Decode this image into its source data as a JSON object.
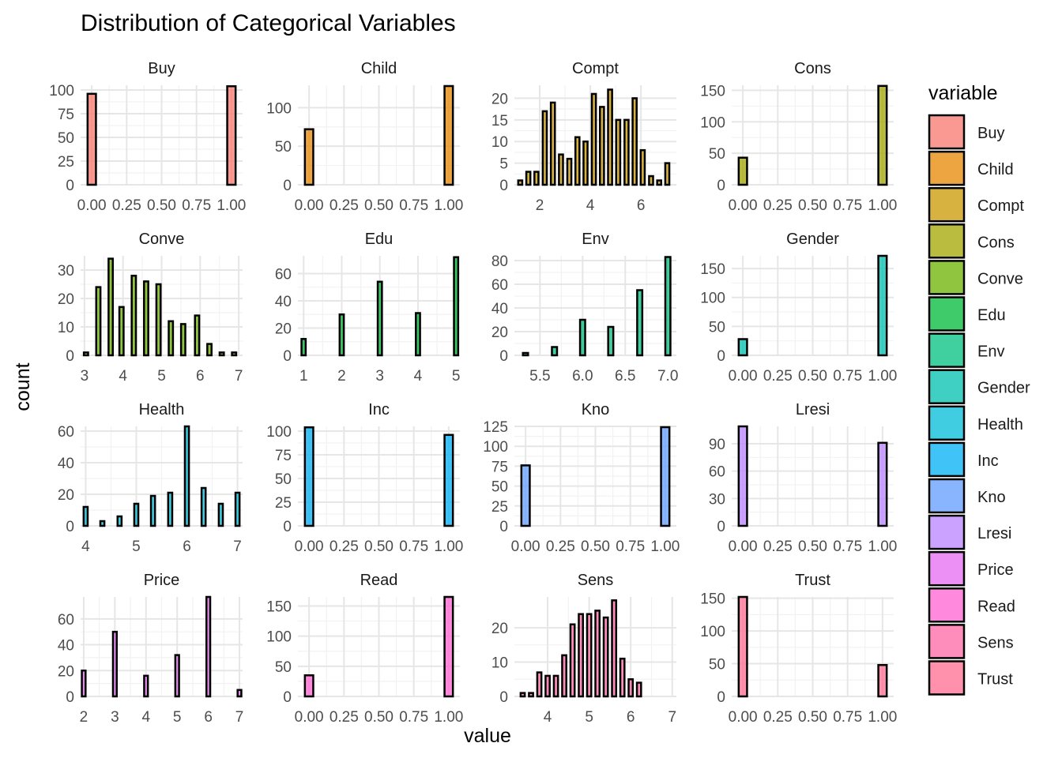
{
  "chart_data": {
    "type": "bar",
    "title": "Distribution of Categorical Variables",
    "xlabel": "value",
    "ylabel": "count",
    "legend_title": "variable",
    "legend_position": "right",
    "grid": true,
    "facets": [
      {
        "name": "Buy",
        "color": "#F8766D",
        "xlim": [
          -0.08,
          1.08
        ],
        "xticks": [
          0,
          0.25,
          0.5,
          0.75,
          1
        ],
        "xtick_labels": [
          "0.00",
          "0.25",
          "0.50",
          "0.75",
          "1.00"
        ],
        "ylim": [
          0,
          105
        ],
        "yticks": [
          0,
          25,
          50,
          75,
          100
        ],
        "bar_width": 0.06,
        "x": [
          0,
          1
        ],
        "values": [
          96,
          104
        ]
      },
      {
        "name": "Child",
        "color": "#E58700",
        "xlim": [
          -0.08,
          1.08
        ],
        "xticks": [
          0,
          0.25,
          0.5,
          0.75,
          1
        ],
        "xtick_labels": [
          "0.00",
          "0.25",
          "0.50",
          "0.75",
          "1.00"
        ],
        "ylim": [
          0,
          129
        ],
        "yticks": [
          0,
          50,
          100
        ],
        "bar_width": 0.06,
        "x": [
          0,
          1
        ],
        "values": [
          72,
          128
        ]
      },
      {
        "name": "Compt",
        "color": "#C99800",
        "xlim": [
          1,
          7.4
        ],
        "xticks": [
          2,
          4,
          6
        ],
        "xtick_labels": [
          "2",
          "4",
          "6"
        ],
        "ylim": [
          0,
          23
        ],
        "yticks": [
          0,
          5,
          10,
          15,
          20
        ],
        "bar_width": 0.16,
        "x": [
          1.23,
          1.55,
          1.87,
          2.2,
          2.52,
          2.84,
          3.17,
          3.49,
          3.81,
          4.14,
          4.46,
          4.78,
          5.1,
          5.43,
          5.75,
          6.07,
          6.4,
          6.72,
          7.04
        ],
        "values": [
          1,
          3,
          3,
          17,
          19,
          7,
          6,
          11,
          10,
          21,
          18,
          22,
          15,
          15,
          20,
          8,
          2,
          1,
          5
        ]
      },
      {
        "name": "Cons",
        "color": "#A3A500",
        "xlim": [
          -0.08,
          1.08
        ],
        "xticks": [
          0,
          0.25,
          0.5,
          0.75,
          1
        ],
        "xtick_labels": [
          "0.00",
          "0.25",
          "0.50",
          "0.75",
          "1.00"
        ],
        "ylim": [
          0,
          158
        ],
        "yticks": [
          0,
          50,
          100,
          150
        ],
        "bar_width": 0.06,
        "x": [
          0,
          1
        ],
        "values": [
          43,
          157
        ]
      },
      {
        "name": "Conve",
        "color": "#6BB100",
        "xlim": [
          2.9,
          7.1
        ],
        "xticks": [
          3,
          4,
          5,
          6,
          7
        ],
        "xtick_labels": [
          "3",
          "4",
          "5",
          "6",
          "7"
        ],
        "ylim": [
          0,
          35
        ],
        "yticks": [
          0,
          10,
          20,
          30
        ],
        "bar_width": 0.11,
        "x": [
          3.04,
          3.36,
          3.68,
          3.96,
          4.28,
          4.6,
          4.92,
          5.24,
          5.56,
          5.92,
          6.24,
          6.56,
          6.88
        ],
        "values": [
          1,
          24,
          34,
          17,
          28,
          26,
          25,
          12,
          11,
          14,
          4,
          1,
          1
        ]
      },
      {
        "name": "Edu",
        "color": "#00BA38",
        "xlim": [
          0.85,
          5.1
        ],
        "xticks": [
          1,
          2,
          3,
          4,
          5
        ],
        "xtick_labels": [
          "1",
          "2",
          "3",
          "4",
          "5"
        ],
        "ylim": [
          0,
          73
        ],
        "yticks": [
          0,
          20,
          40,
          60
        ],
        "bar_width": 0.11,
        "x": [
          1,
          2,
          3,
          4,
          5
        ],
        "values": [
          12,
          30,
          54,
          31,
          72
        ]
      },
      {
        "name": "Env",
        "color": "#00BF7D",
        "xlim": [
          5.2,
          7.1
        ],
        "xticks": [
          5.5,
          6,
          6.5,
          7
        ],
        "xtick_labels": [
          "5.5",
          "6.0",
          "6.5",
          "7.0"
        ],
        "ylim": [
          0,
          84
        ],
        "yticks": [
          0,
          20,
          40,
          60,
          80
        ],
        "bar_width": 0.06,
        "x": [
          5.33,
          5.67,
          6,
          6.33,
          6.67,
          7
        ],
        "values": [
          2,
          7,
          30,
          24,
          55,
          83
        ]
      },
      {
        "name": "Gender",
        "color": "#00C0AF",
        "xlim": [
          -0.08,
          1.08
        ],
        "xticks": [
          0,
          0.25,
          0.5,
          0.75,
          1
        ],
        "xtick_labels": [
          "0.00",
          "0.25",
          "0.50",
          "0.75",
          "1.00"
        ],
        "ylim": [
          0,
          172
        ],
        "yticks": [
          0,
          50,
          100,
          150
        ],
        "bar_width": 0.06,
        "x": [
          0,
          1
        ],
        "values": [
          28,
          172
        ]
      },
      {
        "name": "Health",
        "color": "#00BCD8",
        "xlim": [
          3.9,
          7.1
        ],
        "xticks": [
          4,
          5,
          6,
          7
        ],
        "xtick_labels": [
          "4",
          "5",
          "6",
          "7"
        ],
        "ylim": [
          0,
          63
        ],
        "yticks": [
          0,
          20,
          40,
          60
        ],
        "bar_width": 0.08,
        "x": [
          4,
          4.33,
          4.67,
          5,
          5.33,
          5.67,
          6,
          6.33,
          6.67,
          7
        ],
        "values": [
          12,
          3,
          6,
          14,
          19,
          21,
          63,
          24,
          14,
          21
        ]
      },
      {
        "name": "Inc",
        "color": "#00B0F6",
        "xlim": [
          -0.08,
          1.08
        ],
        "xticks": [
          0,
          0.25,
          0.5,
          0.75,
          1
        ],
        "xtick_labels": [
          "0.00",
          "0.25",
          "0.50",
          "0.75",
          "1.00"
        ],
        "ylim": [
          0,
          105
        ],
        "yticks": [
          0,
          25,
          50,
          75,
          100
        ],
        "bar_width": 0.06,
        "x": [
          0,
          1
        ],
        "values": [
          104,
          96
        ]
      },
      {
        "name": "Kno",
        "color": "#619CFF",
        "xlim": [
          -0.08,
          1.08
        ],
        "xticks": [
          0,
          0.25,
          0.5,
          0.75,
          1
        ],
        "xtick_labels": [
          "0.00",
          "0.25",
          "0.50",
          "0.75",
          "1.00"
        ],
        "ylim": [
          0,
          125
        ],
        "yticks": [
          0,
          25,
          50,
          75,
          100,
          125
        ],
        "bar_width": 0.06,
        "x": [
          0,
          1
        ],
        "values": [
          76,
          124
        ]
      },
      {
        "name": "Lresi",
        "color": "#B983FF",
        "xlim": [
          -0.08,
          1.08
        ],
        "xticks": [
          0,
          0.25,
          0.5,
          0.75,
          1
        ],
        "xtick_labels": [
          "0.00",
          "0.25",
          "0.50",
          "0.75",
          "1.00"
        ],
        "ylim": [
          0,
          109
        ],
        "yticks": [
          0,
          30,
          60,
          90
        ],
        "bar_width": 0.06,
        "x": [
          0,
          1
        ],
        "values": [
          109,
          91
        ]
      },
      {
        "name": "Price",
        "color": "#E76BF3",
        "xlim": [
          1.9,
          7.1
        ],
        "xticks": [
          2,
          3,
          4,
          5,
          6,
          7
        ],
        "xtick_labels": [
          "2",
          "3",
          "4",
          "5",
          "6",
          "7"
        ],
        "ylim": [
          0,
          77
        ],
        "yticks": [
          0,
          20,
          40,
          60
        ],
        "bar_width": 0.12,
        "x": [
          2,
          3,
          4,
          5,
          6,
          7
        ],
        "values": [
          20,
          50,
          16,
          32,
          77,
          5
        ]
      },
      {
        "name": "Read",
        "color": "#FD61D1",
        "xlim": [
          -0.08,
          1.08
        ],
        "xticks": [
          0,
          0.25,
          0.5,
          0.75,
          1
        ],
        "xtick_labels": [
          "0.00",
          "0.25",
          "0.50",
          "0.75",
          "1.00"
        ],
        "ylim": [
          0,
          165
        ],
        "yticks": [
          0,
          50,
          100,
          150
        ],
        "bar_width": 0.06,
        "x": [
          0,
          1
        ],
        "values": [
          35,
          165
        ]
      },
      {
        "name": "Sens",
        "color": "#FF67A4",
        "xlim": [
          3.2,
          7.1
        ],
        "xticks": [
          4,
          5,
          6,
          7
        ],
        "xtick_labels": [
          "4",
          "5",
          "6",
          "7"
        ],
        "ylim": [
          0,
          29
        ],
        "yticks": [
          0,
          10,
          20
        ],
        "bar_width": 0.1,
        "x": [
          3.4,
          3.6,
          3.8,
          4,
          4.2,
          4.4,
          4.6,
          4.8,
          5,
          5.2,
          5.4,
          5.6,
          5.8,
          6,
          6.2,
          6.4,
          6.6,
          6.8,
          7
        ],
        "values": [
          1,
          1,
          7,
          6,
          6,
          12,
          21,
          24,
          24,
          25,
          23,
          28,
          11,
          5,
          4,
          0,
          0,
          0,
          0
        ]
      },
      {
        "name": "Trust",
        "color": "#FF6C91",
        "xlim": [
          -0.08,
          1.08
        ],
        "xticks": [
          0,
          0.25,
          0.5,
          0.75,
          1
        ],
        "xtick_labels": [
          "0.00",
          "0.25",
          "0.50",
          "0.75",
          "1.00"
        ],
        "ylim": [
          0,
          152
        ],
        "yticks": [
          0,
          50,
          100,
          150
        ],
        "bar_width": 0.06,
        "x": [
          0,
          1
        ],
        "values": [
          152,
          48
        ]
      }
    ]
  }
}
